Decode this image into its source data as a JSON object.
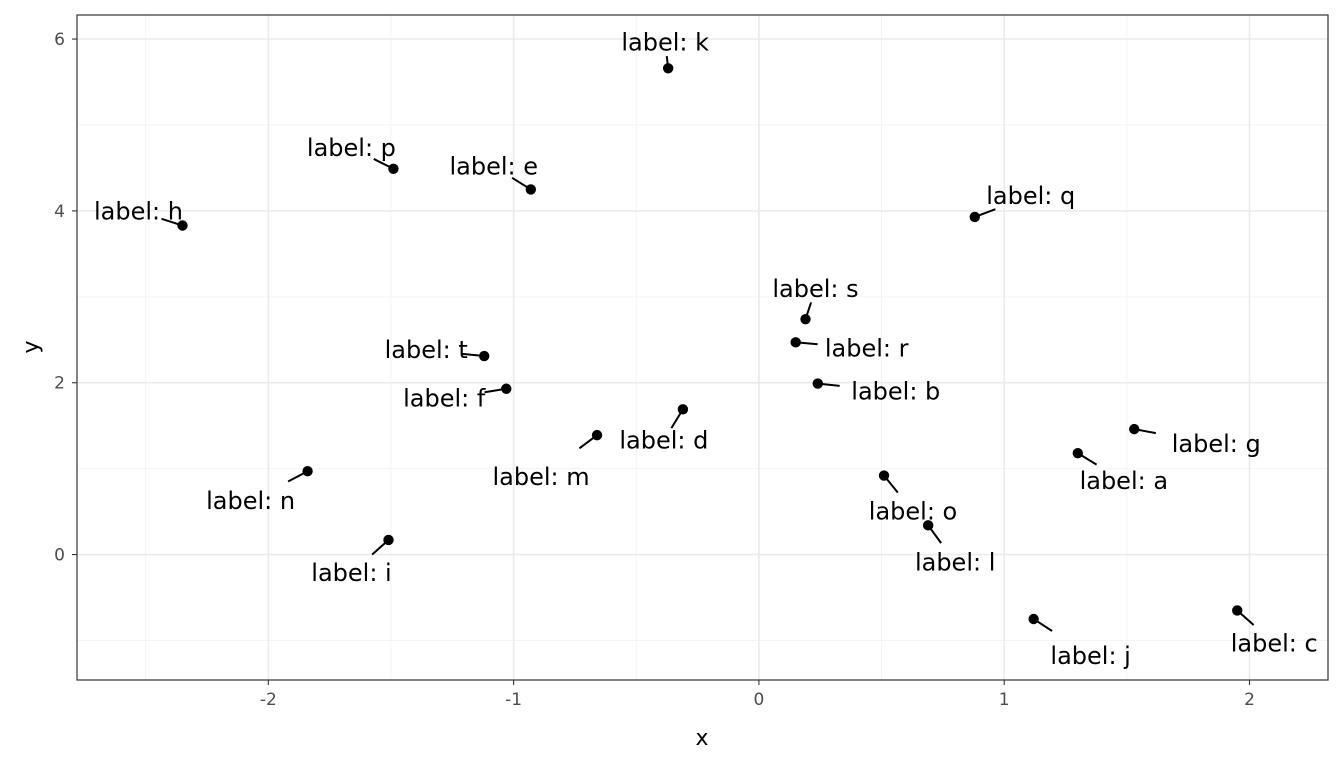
{
  "chart_data": {
    "type": "scatter",
    "title": "",
    "xlabel": "x",
    "ylabel": "y",
    "xlim": [
      -2.78,
      2.32
    ],
    "ylim": [
      -1.46,
      6.28
    ],
    "x_ticks": [
      -2,
      -1,
      0,
      1,
      2
    ],
    "y_ticks": [
      0,
      2,
      4,
      6
    ],
    "x_tick_labels": [
      "-2",
      "-1",
      "0",
      "1",
      "2"
    ],
    "y_tick_labels": [
      "0",
      "2",
      "4",
      "6"
    ],
    "grid": true,
    "legend": "none",
    "point_color": "#000000",
    "points": [
      {
        "id": "a",
        "label": "label: a",
        "x": 1.3,
        "y": 1.18
      },
      {
        "id": "b",
        "label": "label: b",
        "x": 0.24,
        "y": 1.99
      },
      {
        "id": "c",
        "label": "label: c",
        "x": 1.95,
        "y": -0.65
      },
      {
        "id": "d",
        "label": "label: d",
        "x": -0.31,
        "y": 1.69
      },
      {
        "id": "e",
        "label": "label: e",
        "x": -0.93,
        "y": 4.25
      },
      {
        "id": "f",
        "label": "label: f",
        "x": -1.03,
        "y": 1.93
      },
      {
        "id": "g",
        "label": "label: g",
        "x": 1.53,
        "y": 1.46
      },
      {
        "id": "h",
        "label": "label: h",
        "x": -2.35,
        "y": 3.83
      },
      {
        "id": "i",
        "label": "label: i",
        "x": -1.51,
        "y": 0.17
      },
      {
        "id": "j",
        "label": "label: j",
        "x": 1.12,
        "y": -0.75
      },
      {
        "id": "k",
        "label": "label: k",
        "x": -0.37,
        "y": 5.66
      },
      {
        "id": "l",
        "label": "label: l",
        "x": 0.69,
        "y": 0.34
      },
      {
        "id": "m",
        "label": "label: m",
        "x": -0.66,
        "y": 1.39
      },
      {
        "id": "n",
        "label": "label: n",
        "x": -1.84,
        "y": 0.97
      },
      {
        "id": "o",
        "label": "label: o",
        "x": 0.51,
        "y": 0.92
      },
      {
        "id": "p",
        "label": "label: p",
        "x": -1.49,
        "y": 4.49
      },
      {
        "id": "q",
        "label": "label: q",
        "x": 0.88,
        "y": 3.93
      },
      {
        "id": "r",
        "label": "label: r",
        "x": 0.15,
        "y": 2.47
      },
      {
        "id": "s",
        "label": "label: s",
        "x": 0.19,
        "y": 2.74
      },
      {
        "id": "t",
        "label": "label: t",
        "x": -1.12,
        "y": 2.31
      }
    ]
  }
}
